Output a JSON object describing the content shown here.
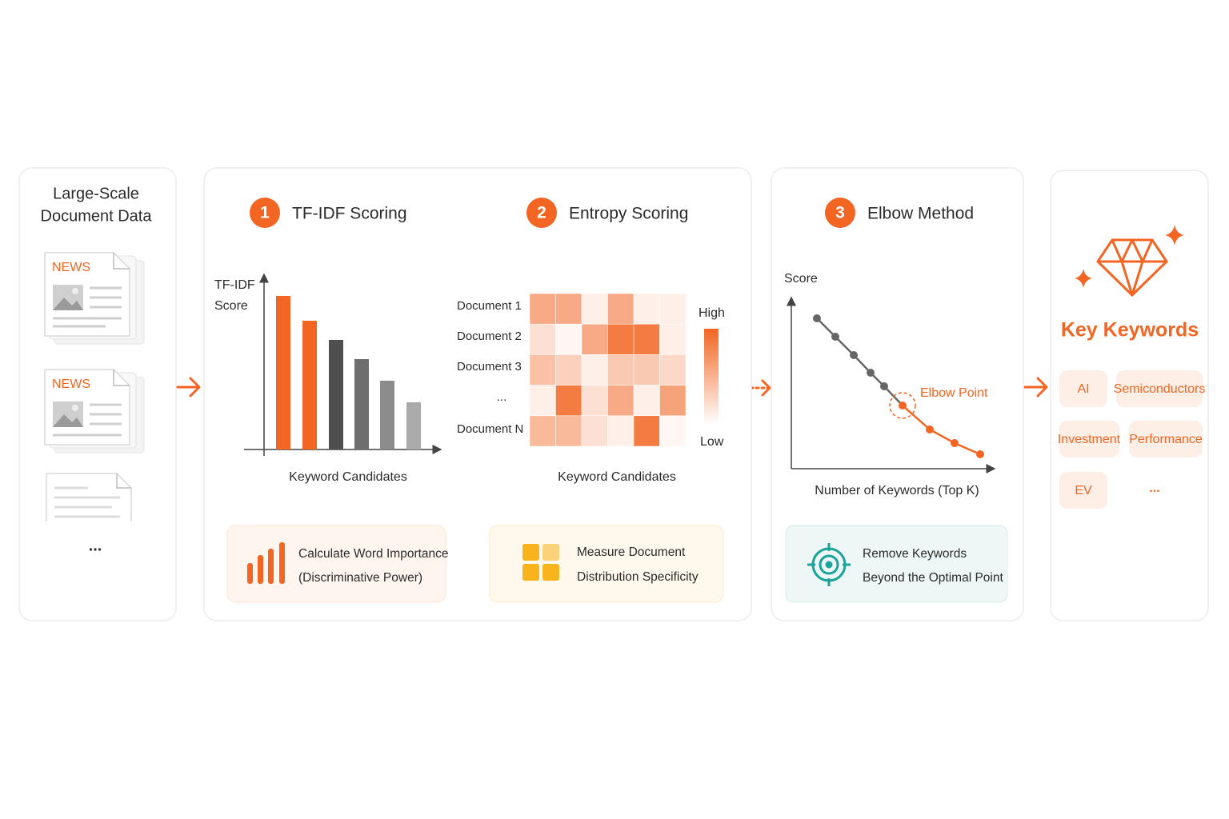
{
  "source": {
    "title": [
      "Large-Scale",
      "Document Data"
    ],
    "badges": [
      "NEWS",
      "NEWS"
    ],
    "more": "..."
  },
  "scoring": {
    "steps": [
      {
        "number": "1",
        "title": "TF-IDF Scoring"
      },
      {
        "number": "2",
        "title": "Entropy Scoring"
      }
    ],
    "tfidf": {
      "y_label": [
        "TF-IDF",
        "Score"
      ],
      "x_label": "Keyword Candidates"
    },
    "entropy": {
      "rows": [
        "Document 1",
        "Document 2",
        "Document 3",
        "...",
        "Document N"
      ],
      "legend_high": "High",
      "legend_low": "Low",
      "x_label": "Keyword Candidates"
    },
    "notes": [
      {
        "lines": [
          "Calculate Word Importance",
          "(Discriminative Power)"
        ]
      },
      {
        "lines": [
          "Measure Document",
          "Distribution Specificity"
        ]
      }
    ]
  },
  "elbow": {
    "step": {
      "number": "3",
      "title": "Elbow Method"
    },
    "y_label": "Score",
    "x_label": "Number of Keywords (Top K)",
    "annotation": "Elbow Point",
    "note": {
      "lines": [
        "Remove Keywords",
        "Beyond the Optimal Point"
      ]
    }
  },
  "result": {
    "title": "Key Keywords",
    "keywords": [
      "AI",
      "Semiconductors",
      "Investment",
      "Performance",
      "EV"
    ],
    "more": "..."
  }
}
